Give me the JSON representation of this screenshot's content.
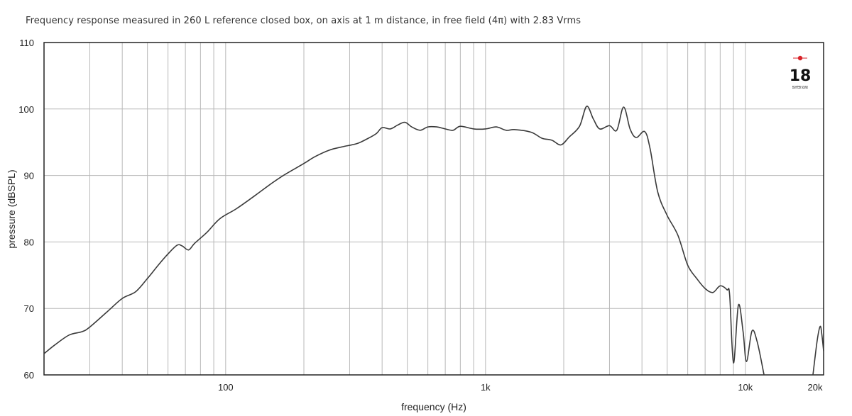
{
  "chart_data": {
    "type": "line",
    "title": "Frequency response measured in 260 L reference closed box, on axis at 1 m distance, in free field (4π) with 2.83 Vrms",
    "xlabel": "frequency (Hz)",
    "ylabel": "pressure (dBSPL)",
    "x_scale": "log",
    "xlim": [
      20,
      20000
    ],
    "ylim": [
      60,
      110
    ],
    "grid": true,
    "x_ticks": [
      {
        "value": 100,
        "label": "100"
      },
      {
        "value": 1000,
        "label": "1k"
      },
      {
        "value": 10000,
        "label": "10k"
      },
      {
        "value": 20000,
        "label": "20k"
      }
    ],
    "y_ticks": [
      {
        "value": 60,
        "label": "60"
      },
      {
        "value": 70,
        "label": "70"
      },
      {
        "value": 80,
        "label": "80"
      },
      {
        "value": 90,
        "label": "90"
      },
      {
        "value": 100,
        "label": "100"
      },
      {
        "value": 110,
        "label": "110"
      }
    ],
    "series": [
      {
        "points": [
          {
            "x": 20,
            "y": 63.2
          },
          {
            "x": 22,
            "y": 64.5
          },
          {
            "x": 25,
            "y": 66.0
          },
          {
            "x": 28,
            "y": 66.5
          },
          {
            "x": 30,
            "y": 67.2
          },
          {
            "x": 35,
            "y": 69.5
          },
          {
            "x": 40,
            "y": 71.5
          },
          {
            "x": 45,
            "y": 72.5
          },
          {
            "x": 50,
            "y": 74.5
          },
          {
            "x": 55,
            "y": 76.5
          },
          {
            "x": 60,
            "y": 78.2
          },
          {
            "x": 65,
            "y": 79.5
          },
          {
            "x": 68,
            "y": 79.4
          },
          {
            "x": 72,
            "y": 78.8
          },
          {
            "x": 76,
            "y": 79.8
          },
          {
            "x": 85,
            "y": 81.5
          },
          {
            "x": 95,
            "y": 83.5
          },
          {
            "x": 110,
            "y": 85.0
          },
          {
            "x": 130,
            "y": 87.0
          },
          {
            "x": 150,
            "y": 88.8
          },
          {
            "x": 170,
            "y": 90.2
          },
          {
            "x": 200,
            "y": 91.8
          },
          {
            "x": 220,
            "y": 92.8
          },
          {
            "x": 250,
            "y": 93.8
          },
          {
            "x": 280,
            "y": 94.3
          },
          {
            "x": 320,
            "y": 94.8
          },
          {
            "x": 350,
            "y": 95.5
          },
          {
            "x": 380,
            "y": 96.3
          },
          {
            "x": 400,
            "y": 97.2
          },
          {
            "x": 430,
            "y": 97.0
          },
          {
            "x": 460,
            "y": 97.6
          },
          {
            "x": 490,
            "y": 98.0
          },
          {
            "x": 520,
            "y": 97.3
          },
          {
            "x": 560,
            "y": 96.8
          },
          {
            "x": 600,
            "y": 97.3
          },
          {
            "x": 650,
            "y": 97.3
          },
          {
            "x": 700,
            "y": 97.0
          },
          {
            "x": 750,
            "y": 96.8
          },
          {
            "x": 800,
            "y": 97.4
          },
          {
            "x": 900,
            "y": 97.0
          },
          {
            "x": 1000,
            "y": 97.0
          },
          {
            "x": 1100,
            "y": 97.3
          },
          {
            "x": 1200,
            "y": 96.8
          },
          {
            "x": 1300,
            "y": 96.9
          },
          {
            "x": 1500,
            "y": 96.5
          },
          {
            "x": 1650,
            "y": 95.6
          },
          {
            "x": 1800,
            "y": 95.3
          },
          {
            "x": 1950,
            "y": 94.6
          },
          {
            "x": 2100,
            "y": 95.8
          },
          {
            "x": 2300,
            "y": 97.4
          },
          {
            "x": 2450,
            "y": 100.4
          },
          {
            "x": 2600,
            "y": 98.5
          },
          {
            "x": 2750,
            "y": 97.0
          },
          {
            "x": 3000,
            "y": 97.5
          },
          {
            "x": 3200,
            "y": 96.8
          },
          {
            "x": 3400,
            "y": 100.3
          },
          {
            "x": 3600,
            "y": 97.0
          },
          {
            "x": 3800,
            "y": 95.7
          },
          {
            "x": 4100,
            "y": 96.6
          },
          {
            "x": 4300,
            "y": 94.0
          },
          {
            "x": 4600,
            "y": 87.5
          },
          {
            "x": 5000,
            "y": 84.0
          },
          {
            "x": 5500,
            "y": 81.0
          },
          {
            "x": 6000,
            "y": 76.5
          },
          {
            "x": 6500,
            "y": 74.5
          },
          {
            "x": 7000,
            "y": 73.0
          },
          {
            "x": 7500,
            "y": 72.4
          },
          {
            "x": 8000,
            "y": 73.4
          },
          {
            "x": 8500,
            "y": 72.8
          },
          {
            "x": 8700,
            "y": 72.0
          },
          {
            "x": 9000,
            "y": 61.8
          },
          {
            "x": 9400,
            "y": 70.5
          },
          {
            "x": 9800,
            "y": 66.5
          },
          {
            "x": 10100,
            "y": 62.0
          },
          {
            "x": 10600,
            "y": 66.6
          },
          {
            "x": 11100,
            "y": 65.0
          },
          {
            "x": 11800,
            "y": 60.0
          }
        ]
      },
      {
        "points": [
          {
            "x": 18200,
            "y": 60.0
          },
          {
            "x": 18900,
            "y": 65.2
          },
          {
            "x": 19400,
            "y": 67.3
          },
          {
            "x": 19700,
            "y": 66.0
          },
          {
            "x": 20000,
            "y": 63.6
          }
        ]
      }
    ],
    "logo": {
      "text": "18",
      "small_text": "EIGHTEEN SOUND",
      "accent": "#d8232a"
    }
  }
}
